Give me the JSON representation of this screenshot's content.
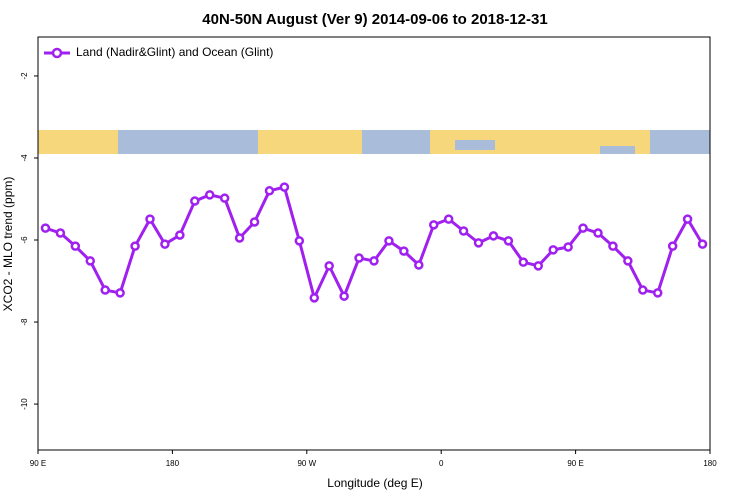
{
  "chart_data": {
    "type": "line",
    "title": "40N-50N August (Ver 9)   2014-09-06 to 2018-12-31",
    "x_label": "Longitude (deg E)",
    "y_label": "XCO2 - MLO trend (ppm)",
    "x": [
      95,
      105,
      115,
      125,
      135,
      145,
      155,
      165,
      175,
      185,
      195,
      205,
      215,
      225,
      235,
      245,
      255,
      265,
      275,
      285,
      295,
      305,
      315,
      325,
      335,
      345,
      355,
      365,
      375,
      385,
      395,
      405,
      415,
      425,
      435,
      445,
      455,
      465,
      475,
      485,
      495,
      505,
      515,
      525,
      535
    ],
    "series": [
      {
        "name": "Land (Nadir&Glint) and Ocean (Glint)",
        "color": "#a020f0",
        "values": [
          -5.71,
          -5.83,
          -6.15,
          -6.51,
          -7.22,
          -7.29,
          -6.15,
          -5.49,
          -6.1,
          -5.88,
          -5.05,
          -4.9,
          -4.98,
          -5.95,
          -5.56,
          -4.8,
          -4.71,
          -6.02,
          -7.41,
          -6.63,
          -7.37,
          -6.44,
          -6.51,
          -6.02,
          -6.27,
          -6.61,
          -5.63,
          -5.49,
          -5.78,
          -6.07,
          -5.9,
          -6.02,
          -6.54,
          -6.63,
          -6.24,
          -6.17,
          -5.71,
          -5.83,
          -6.15,
          -6.51,
          -7.22,
          -7.29,
          -6.15,
          -5.49,
          -6.1
        ]
      }
    ],
    "xlim": [
      90,
      540
    ],
    "xticks": [
      {
        "value": 90,
        "label": "90 E"
      },
      {
        "value": 180,
        "label": "180"
      },
      {
        "value": 270,
        "label": "90 W"
      },
      {
        "value": 360,
        "label": "0"
      },
      {
        "value": 450,
        "label": "90 E"
      },
      {
        "value": 540,
        "label": "180"
      }
    ],
    "ylim": [
      -11.12,
      -1.05
    ],
    "yticks": [
      -10,
      -8,
      -6,
      -4,
      -2
    ],
    "legend": "top-left"
  }
}
